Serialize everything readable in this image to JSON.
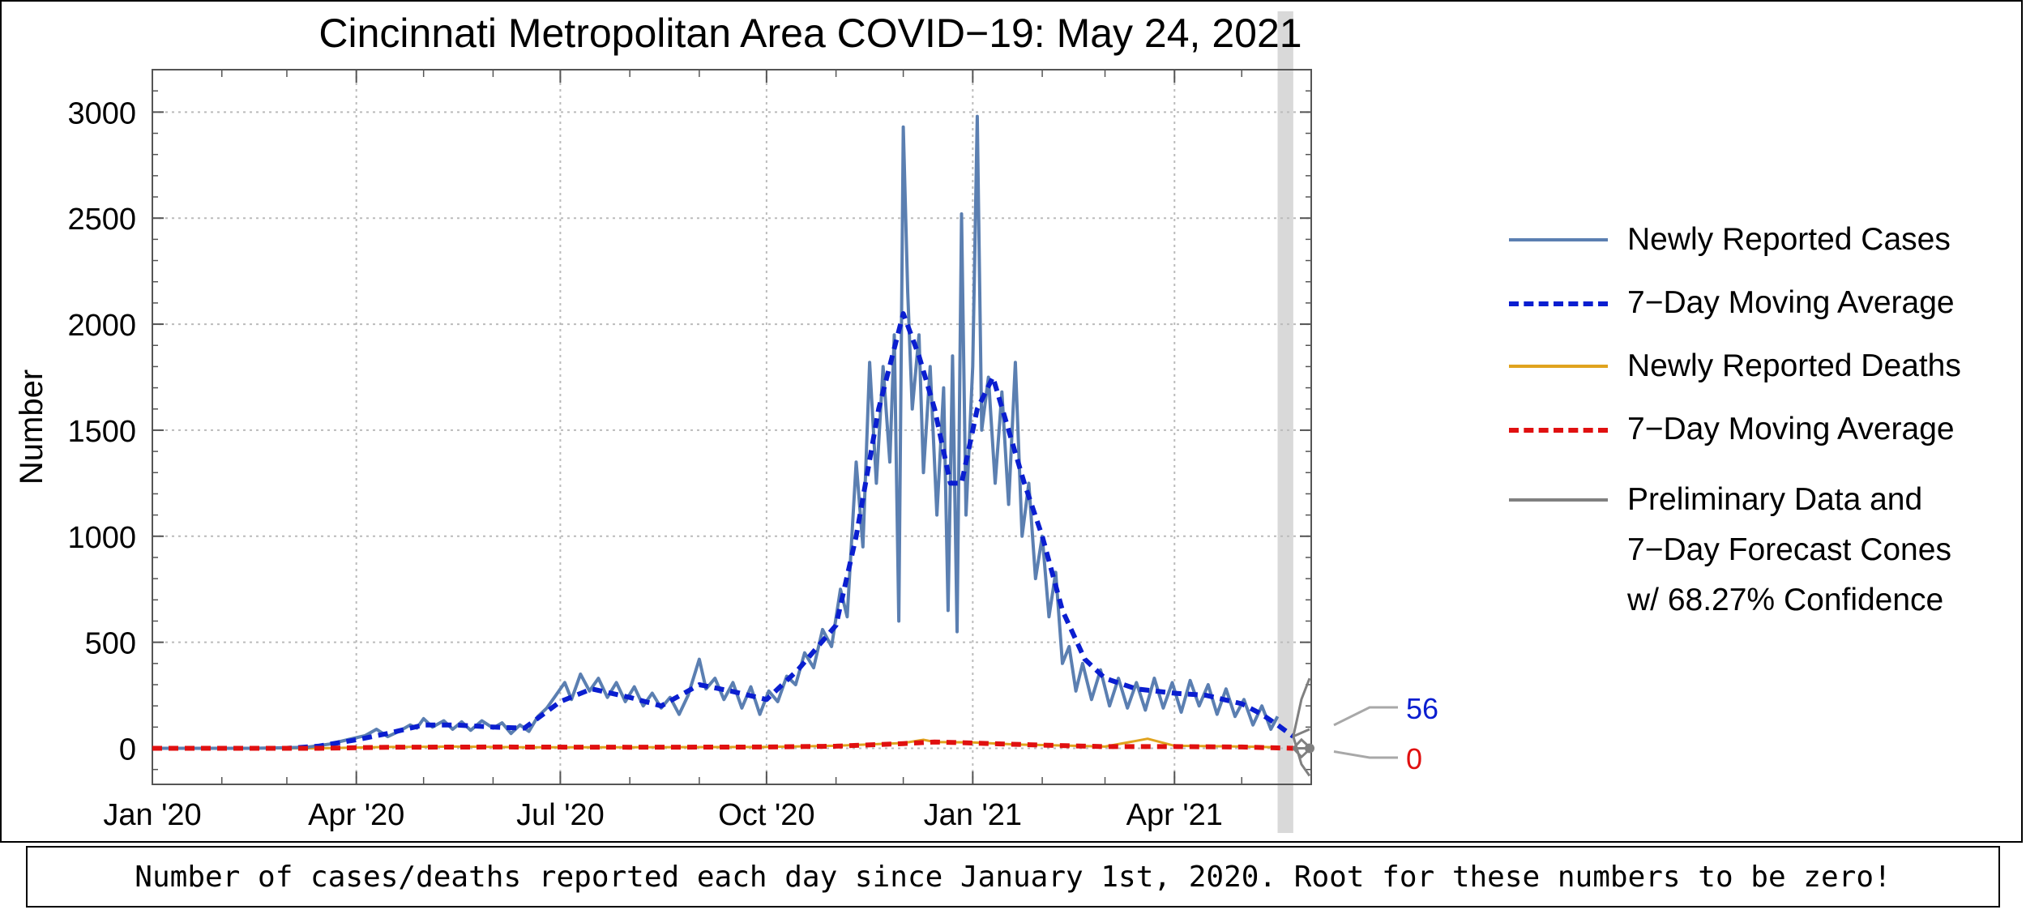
{
  "chart_data": {
    "type": "line",
    "title": "Cincinnati Metropolitan Area COVID−19: May 24, 2021",
    "ylabel": "Number",
    "xlabel": "",
    "x_range": [
      "2020-01-01",
      "2021-06-01"
    ],
    "ylim": [
      -170,
      3200
    ],
    "x_ticks": [
      {
        "date": "2020-01-01",
        "label": "Jan '20"
      },
      {
        "date": "2020-04-01",
        "label": "Apr '20"
      },
      {
        "date": "2020-07-01",
        "label": "Jul '20"
      },
      {
        "date": "2020-10-01",
        "label": "Oct '20"
      },
      {
        "date": "2021-01-01",
        "label": "Jan '21"
      },
      {
        "date": "2021-04-01",
        "label": "Apr '21"
      }
    ],
    "y_ticks": [
      0,
      500,
      1000,
      1500,
      2000,
      2500,
      3000
    ],
    "grid": true,
    "preliminary_band": [
      "2021-05-17",
      "2021-05-24"
    ],
    "legend_position": "right",
    "legend": [
      {
        "label": "Newly Reported Cases",
        "color": "#5b7fb1",
        "style": "solid"
      },
      {
        "label": "7−Day Moving Average",
        "color": "#0a1ed0",
        "style": "dashed"
      },
      {
        "label": "Newly Reported Deaths",
        "color": "#e0a31e",
        "style": "solid"
      },
      {
        "label": "7−Day Moving Average",
        "color": "#e01010",
        "style": "dashed"
      },
      {
        "label": "Preliminary Data and",
        "color": "#808080",
        "style": "solid"
      }
    ],
    "legend_extra_lines": [
      "7−Day Forecast Cones",
      "w/ 68.27% Confidence"
    ],
    "series": [
      {
        "name": "Newly Reported Cases",
        "color": "#5b7fb1",
        "points": [
          [
            "2020-01-01",
            0
          ],
          [
            "2020-02-15",
            0
          ],
          [
            "2020-03-10",
            5
          ],
          [
            "2020-03-20",
            20
          ],
          [
            "2020-03-28",
            40
          ],
          [
            "2020-04-05",
            60
          ],
          [
            "2020-04-10",
            90
          ],
          [
            "2020-04-15",
            55
          ],
          [
            "2020-04-20",
            80
          ],
          [
            "2020-04-25",
            110
          ],
          [
            "2020-04-28",
            95
          ],
          [
            "2020-05-01",
            140
          ],
          [
            "2020-05-05",
            100
          ],
          [
            "2020-05-10",
            130
          ],
          [
            "2020-05-14",
            90
          ],
          [
            "2020-05-18",
            125
          ],
          [
            "2020-05-22",
            85
          ],
          [
            "2020-05-27",
            130
          ],
          [
            "2020-06-01",
            95
          ],
          [
            "2020-06-05",
            120
          ],
          [
            "2020-06-09",
            70
          ],
          [
            "2020-06-13",
            110
          ],
          [
            "2020-06-17",
            80
          ],
          [
            "2020-06-21",
            150
          ],
          [
            "2020-06-25",
            190
          ],
          [
            "2020-06-29",
            250
          ],
          [
            "2020-07-03",
            310
          ],
          [
            "2020-07-06",
            230
          ],
          [
            "2020-07-10",
            350
          ],
          [
            "2020-07-14",
            270
          ],
          [
            "2020-07-18",
            330
          ],
          [
            "2020-07-22",
            240
          ],
          [
            "2020-07-26",
            310
          ],
          [
            "2020-07-30",
            220
          ],
          [
            "2020-08-03",
            290
          ],
          [
            "2020-08-07",
            200
          ],
          [
            "2020-08-11",
            260
          ],
          [
            "2020-08-15",
            190
          ],
          [
            "2020-08-19",
            240
          ],
          [
            "2020-08-23",
            160
          ],
          [
            "2020-08-27",
            250
          ],
          [
            "2020-09-01",
            420
          ],
          [
            "2020-09-04",
            280
          ],
          [
            "2020-09-08",
            330
          ],
          [
            "2020-09-12",
            230
          ],
          [
            "2020-09-16",
            310
          ],
          [
            "2020-09-20",
            190
          ],
          [
            "2020-09-24",
            290
          ],
          [
            "2020-09-28",
            160
          ],
          [
            "2020-10-02",
            270
          ],
          [
            "2020-10-06",
            220
          ],
          [
            "2020-10-10",
            340
          ],
          [
            "2020-10-14",
            300
          ],
          [
            "2020-10-18",
            450
          ],
          [
            "2020-10-22",
            380
          ],
          [
            "2020-10-26",
            560
          ],
          [
            "2020-10-30",
            480
          ],
          [
            "2020-11-03",
            750
          ],
          [
            "2020-11-06",
            620
          ],
          [
            "2020-11-10",
            1350
          ],
          [
            "2020-11-13",
            950
          ],
          [
            "2020-11-16",
            1820
          ],
          [
            "2020-11-19",
            1250
          ],
          [
            "2020-11-22",
            1800
          ],
          [
            "2020-11-25",
            1350
          ],
          [
            "2020-11-27",
            1950
          ],
          [
            "2020-11-29",
            600
          ],
          [
            "2020-12-01",
            2930
          ],
          [
            "2020-12-03",
            2150
          ],
          [
            "2020-12-05",
            1600
          ],
          [
            "2020-12-08",
            1950
          ],
          [
            "2020-12-10",
            1300
          ],
          [
            "2020-12-13",
            1800
          ],
          [
            "2020-12-16",
            1100
          ],
          [
            "2020-12-19",
            1700
          ],
          [
            "2020-12-21",
            650
          ],
          [
            "2020-12-23",
            1850
          ],
          [
            "2020-12-25",
            550
          ],
          [
            "2020-12-27",
            2520
          ],
          [
            "2020-12-29",
            1100
          ],
          [
            "2021-01-01",
            1800
          ],
          [
            "2021-01-03",
            2980
          ],
          [
            "2021-01-05",
            1500
          ],
          [
            "2021-01-08",
            1750
          ],
          [
            "2021-01-11",
            1250
          ],
          [
            "2021-01-14",
            1680
          ],
          [
            "2021-01-17",
            1150
          ],
          [
            "2021-01-20",
            1820
          ],
          [
            "2021-01-23",
            1000
          ],
          [
            "2021-01-26",
            1250
          ],
          [
            "2021-01-29",
            800
          ],
          [
            "2021-02-01",
            1000
          ],
          [
            "2021-02-04",
            620
          ],
          [
            "2021-02-07",
            830
          ],
          [
            "2021-02-10",
            400
          ],
          [
            "2021-02-13",
            480
          ],
          [
            "2021-02-16",
            270
          ],
          [
            "2021-02-19",
            400
          ],
          [
            "2021-02-23",
            230
          ],
          [
            "2021-02-27",
            370
          ],
          [
            "2021-03-03",
            200
          ],
          [
            "2021-03-07",
            330
          ],
          [
            "2021-03-11",
            190
          ],
          [
            "2021-03-15",
            310
          ],
          [
            "2021-03-19",
            180
          ],
          [
            "2021-03-23",
            330
          ],
          [
            "2021-03-27",
            190
          ],
          [
            "2021-03-31",
            310
          ],
          [
            "2021-04-04",
            170
          ],
          [
            "2021-04-08",
            320
          ],
          [
            "2021-04-12",
            200
          ],
          [
            "2021-04-16",
            300
          ],
          [
            "2021-04-20",
            160
          ],
          [
            "2021-04-24",
            280
          ],
          [
            "2021-04-28",
            150
          ],
          [
            "2021-05-02",
            230
          ],
          [
            "2021-05-06",
            110
          ],
          [
            "2021-05-10",
            200
          ],
          [
            "2021-05-14",
            90
          ],
          [
            "2021-05-17",
            150
          ]
        ]
      },
      {
        "name": "7−Day Moving Average",
        "color": "#0a1ed0",
        "points": [
          [
            "2020-01-01",
            0
          ],
          [
            "2020-03-01",
            0
          ],
          [
            "2020-03-15",
            10
          ],
          [
            "2020-04-01",
            40
          ],
          [
            "2020-04-15",
            70
          ],
          [
            "2020-05-01",
            110
          ],
          [
            "2020-05-15",
            110
          ],
          [
            "2020-06-01",
            100
          ],
          [
            "2020-06-15",
            95
          ],
          [
            "2020-07-01",
            220
          ],
          [
            "2020-07-15",
            280
          ],
          [
            "2020-08-01",
            240
          ],
          [
            "2020-08-15",
            200
          ],
          [
            "2020-09-01",
            300
          ],
          [
            "2020-09-15",
            270
          ],
          [
            "2020-10-01",
            230
          ],
          [
            "2020-10-15",
            370
          ],
          [
            "2020-11-01",
            580
          ],
          [
            "2020-11-10",
            1000
          ],
          [
            "2020-11-20",
            1600
          ],
          [
            "2020-12-01",
            2050
          ],
          [
            "2020-12-08",
            1850
          ],
          [
            "2020-12-15",
            1600
          ],
          [
            "2020-12-22",
            1250
          ],
          [
            "2020-12-27",
            1250
          ],
          [
            "2021-01-03",
            1600
          ],
          [
            "2021-01-10",
            1750
          ],
          [
            "2021-01-17",
            1500
          ],
          [
            "2021-01-24",
            1250
          ],
          [
            "2021-02-01",
            1000
          ],
          [
            "2021-02-10",
            650
          ],
          [
            "2021-02-20",
            420
          ],
          [
            "2021-03-01",
            330
          ],
          [
            "2021-03-15",
            280
          ],
          [
            "2021-04-01",
            260
          ],
          [
            "2021-04-15",
            250
          ],
          [
            "2021-05-01",
            210
          ],
          [
            "2021-05-10",
            160
          ],
          [
            "2021-05-17",
            110
          ],
          [
            "2021-05-24",
            56
          ]
        ]
      },
      {
        "name": "Newly Reported Deaths",
        "color": "#e0a31e",
        "points": [
          [
            "2020-01-01",
            0
          ],
          [
            "2020-03-15",
            0
          ],
          [
            "2020-04-15",
            6
          ],
          [
            "2020-05-15",
            8
          ],
          [
            "2020-06-15",
            5
          ],
          [
            "2020-08-01",
            5
          ],
          [
            "2020-10-01",
            6
          ],
          [
            "2020-11-01",
            12
          ],
          [
            "2020-12-01",
            25
          ],
          [
            "2020-12-10",
            40
          ],
          [
            "2020-12-15",
            30
          ],
          [
            "2021-01-01",
            28
          ],
          [
            "2021-01-20",
            18
          ],
          [
            "2021-02-15",
            12
          ],
          [
            "2021-03-01",
            8
          ],
          [
            "2021-03-20",
            45
          ],
          [
            "2021-04-01",
            12
          ],
          [
            "2021-05-01",
            8
          ],
          [
            "2021-05-17",
            5
          ]
        ]
      },
      {
        "name": "7−Day Moving Average",
        "color": "#e01010",
        "points": [
          [
            "2020-01-01",
            0
          ],
          [
            "2020-03-15",
            0
          ],
          [
            "2020-04-15",
            5
          ],
          [
            "2020-06-01",
            6
          ],
          [
            "2020-08-01",
            5
          ],
          [
            "2020-10-01",
            6
          ],
          [
            "2020-11-01",
            10
          ],
          [
            "2020-12-01",
            22
          ],
          [
            "2020-12-15",
            30
          ],
          [
            "2021-01-01",
            25
          ],
          [
            "2021-02-01",
            15
          ],
          [
            "2021-03-01",
            8
          ],
          [
            "2021-04-01",
            8
          ],
          [
            "2021-05-01",
            6
          ],
          [
            "2021-05-24",
            0
          ]
        ]
      }
    ],
    "forecast_cones": {
      "color": "#808080",
      "cases": {
        "start": [
          "2021-05-24",
          56
        ],
        "upper": 330,
        "center": 90,
        "lower": -130
      },
      "deaths": {
        "start": [
          "2021-05-24",
          0
        ],
        "upper": 5,
        "center": 0,
        "lower": -5
      }
    },
    "end_labels": [
      {
        "series": "7−Day Moving Average (cases)",
        "value": "56",
        "color": "#0a1ed0"
      },
      {
        "series": "7−Day Moving Average (deaths)",
        "value": "0",
        "color": "#e01010"
      }
    ]
  },
  "caption": "Number of cases/deaths reported each day since January 1st, 2020. Root for these numbers to be zero!"
}
